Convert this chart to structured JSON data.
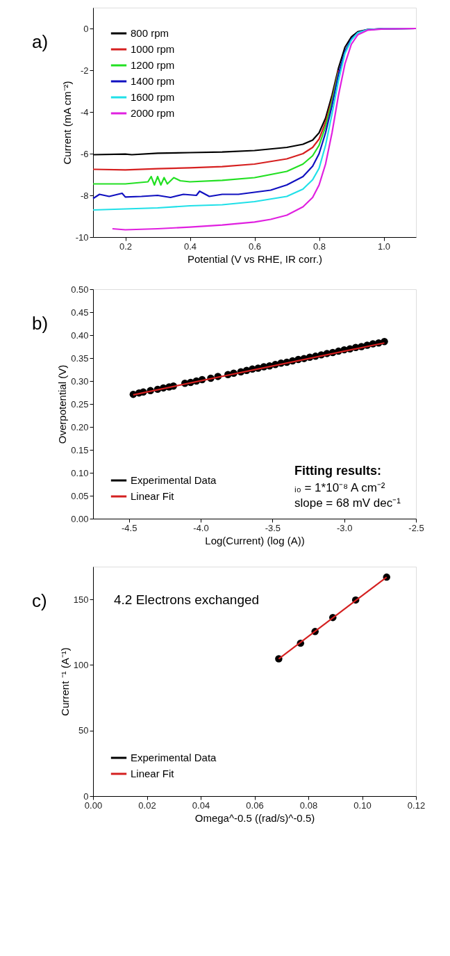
{
  "chart_data": [
    {
      "type": "line",
      "xlabel": "Potential (V vs RHE, IR corr.)",
      "ylabel": "Current (mA cm⁻²)",
      "xlim": [
        0.1,
        1.1
      ],
      "xticks": [
        0.2,
        0.4,
        0.6,
        0.8,
        {
          "value": 1.0,
          "label": "1.0"
        }
      ],
      "ylim": [
        -10,
        1
      ],
      "yticks": [
        -10,
        -8,
        -6,
        -4,
        -2,
        0
      ],
      "grid": false,
      "legend": "top left",
      "annotations": [
        "a)"
      ],
      "series": [
        {
          "name": "800 rpm",
          "color": "#000000",
          "x": [
            0.1,
            0.2,
            0.22,
            0.3,
            0.4,
            0.5,
            0.6,
            0.7,
            0.75,
            0.78,
            0.8,
            0.82,
            0.84,
            0.86,
            0.88,
            0.9,
            0.92,
            0.95,
            1.0,
            1.1
          ],
          "values": [
            -6.05,
            -6.02,
            -6.05,
            -5.98,
            -5.95,
            -5.92,
            -5.85,
            -5.7,
            -5.55,
            -5.35,
            -5.0,
            -4.3,
            -3.2,
            -1.9,
            -0.9,
            -0.4,
            -0.15,
            -0.05,
            -0.01,
            0
          ]
        },
        {
          "name": "1000 rpm",
          "color": "#d62020",
          "x": [
            0.1,
            0.2,
            0.3,
            0.4,
            0.5,
            0.6,
            0.7,
            0.75,
            0.78,
            0.8,
            0.82,
            0.84,
            0.86
          ],
          "values": [
            -6.75,
            -6.78,
            -6.72,
            -6.68,
            -6.62,
            -6.5,
            -6.25,
            -6.0,
            -5.7,
            -5.3,
            -4.5,
            -3.4,
            -2.0
          ]
        },
        {
          "name": "1200 rpm",
          "color": "#22e022",
          "x": [
            0.1,
            0.2,
            0.27,
            0.28,
            0.29,
            0.3,
            0.31,
            0.32,
            0.33,
            0.35,
            0.37,
            0.4,
            0.5,
            0.6,
            0.7,
            0.75,
            0.78,
            0.8,
            0.82,
            0.84,
            0.86
          ],
          "values": [
            -7.45,
            -7.45,
            -7.35,
            -7.1,
            -7.5,
            -7.1,
            -7.5,
            -7.15,
            -7.45,
            -7.15,
            -7.3,
            -7.35,
            -7.28,
            -7.15,
            -6.85,
            -6.5,
            -6.1,
            -5.6,
            -4.7,
            -3.5,
            -2.1
          ]
        },
        {
          "name": "1400 rpm",
          "color": "#1010c0",
          "x": [
            0.1,
            0.12,
            0.15,
            0.19,
            0.2,
            0.25,
            0.3,
            0.34,
            0.38,
            0.42,
            0.43,
            0.46,
            0.5,
            0.55,
            0.6,
            0.65,
            0.7,
            0.75,
            0.78,
            0.8,
            0.82,
            0.84,
            0.86,
            0.88,
            0.9,
            0.92,
            0.95,
            1.0,
            1.1
          ],
          "values": [
            -8.15,
            -7.95,
            -8.05,
            -7.9,
            -8.08,
            -8.05,
            -8.0,
            -8.1,
            -7.95,
            -8.0,
            -7.8,
            -8.05,
            -7.95,
            -7.95,
            -7.85,
            -7.75,
            -7.5,
            -7.1,
            -6.6,
            -6.0,
            -5.0,
            -3.7,
            -2.2,
            -1.1,
            -0.5,
            -0.2,
            -0.05,
            -0.01,
            0
          ]
        },
        {
          "name": "1600 rpm",
          "color": "#20e0e8",
          "x": [
            0.1,
            0.2,
            0.3,
            0.4,
            0.5,
            0.6,
            0.7,
            0.75,
            0.78,
            0.8,
            0.82,
            0.84,
            0.86,
            0.88,
            0.9,
            0.92,
            0.95,
            1.0,
            1.1
          ],
          "values": [
            -8.7,
            -8.65,
            -8.6,
            -8.5,
            -8.45,
            -8.3,
            -8.05,
            -7.7,
            -7.25,
            -6.7,
            -5.6,
            -4.1,
            -2.5,
            -1.2,
            -0.55,
            -0.2,
            -0.06,
            -0.01,
            0
          ]
        },
        {
          "name": "2000 rpm",
          "color": "#e020e0",
          "x": [
            0.16,
            0.2,
            0.3,
            0.4,
            0.5,
            0.6,
            0.65,
            0.7,
            0.75,
            0.78,
            0.8,
            0.82,
            0.84,
            0.86,
            0.88,
            0.9,
            0.92,
            0.95,
            1.0,
            1.1
          ],
          "values": [
            -9.6,
            -9.65,
            -9.6,
            -9.52,
            -9.42,
            -9.28,
            -9.15,
            -8.95,
            -8.55,
            -8.1,
            -7.5,
            -6.5,
            -5.0,
            -3.2,
            -1.7,
            -0.75,
            -0.3,
            -0.08,
            -0.02,
            0
          ]
        }
      ]
    },
    {
      "type": "line",
      "xlabel": "Log(Current) (log (A))",
      "ylabel": "Overpotential (V)",
      "xlim": [
        -4.75,
        -2.5
      ],
      "xticks": [
        -4.5,
        {
          "value": -4.0,
          "label": "-4.0"
        },
        -3.5,
        {
          "value": -3.0,
          "label": "-3.0"
        },
        -2.5
      ],
      "ylim": [
        0,
        0.5
      ],
      "yticks": [
        {
          "value": 0,
          "label": "0.00"
        },
        0.05,
        {
          "value": 0.1,
          "label": "0.10"
        },
        0.15,
        {
          "value": 0.2,
          "label": "0.20"
        },
        0.25,
        {
          "value": 0.3,
          "label": "0.30"
        },
        0.35,
        {
          "value": 0.4,
          "label": "0.40"
        },
        0.45,
        {
          "value": 0.5,
          "label": "0.50"
        }
      ],
      "grid": false,
      "legend": "bottom left",
      "annotations": [
        "b)",
        "Fitting results:",
        "ᵢ₀ = 1*10⁻⁸ A cm⁻²",
        "slope = 68 mV dec⁻¹"
      ],
      "series": [
        {
          "name": "Experimental Data",
          "type": "scatter",
          "color": "#000000",
          "marker": "circle",
          "x": [
            -4.47,
            -4.43,
            -4.4,
            -4.35,
            -4.3,
            -4.26,
            -4.22,
            -4.19,
            -4.11,
            -4.07,
            -4.03,
            -3.99,
            -3.93,
            -3.88,
            -3.81,
            -3.77,
            -3.72,
            -3.68,
            -3.64,
            -3.6,
            -3.56,
            -3.52,
            -3.48,
            -3.44,
            -3.4,
            -3.36,
            -3.32,
            -3.28,
            -3.24,
            -3.2,
            -3.16,
            -3.12,
            -3.08,
            -3.04,
            -3.0,
            -2.96,
            -2.92,
            -2.88,
            -2.84,
            -2.8,
            -2.76,
            -2.72
          ],
          "values": [
            0.271,
            0.274,
            0.276,
            0.279,
            0.282,
            0.285,
            0.287,
            0.289,
            0.295,
            0.297,
            0.3,
            0.303,
            0.306,
            0.31,
            0.314,
            0.317,
            0.32,
            0.323,
            0.326,
            0.328,
            0.331,
            0.333,
            0.336,
            0.339,
            0.341,
            0.344,
            0.347,
            0.349,
            0.352,
            0.354,
            0.357,
            0.36,
            0.362,
            0.365,
            0.368,
            0.37,
            0.373,
            0.375,
            0.378,
            0.381,
            0.383,
            0.386
          ]
        },
        {
          "name": "Linear Fit",
          "color": "#d42020",
          "x": [
            -4.47,
            -2.72
          ],
          "values": [
            0.27,
            0.383
          ]
        }
      ]
    },
    {
      "type": "line",
      "xlabel": "Omega^-0.5 ((rad/s)^-0.5)",
      "ylabel": "Current ⁻¹ (A⁻¹)",
      "xlim": [
        0,
        0.12
      ],
      "xticks": [
        {
          "value": 0,
          "label": "0.00"
        },
        0.02,
        0.04,
        0.06,
        0.08,
        {
          "value": 0.1,
          "label": "0.10"
        },
        0.12
      ],
      "ylim": [
        0,
        175
      ],
      "yticks": [
        0,
        50,
        100,
        150
      ],
      "grid": false,
      "legend": "bottom left",
      "annotations": [
        "c)",
        "4.2 Electrons exchanged"
      ],
      "series": [
        {
          "name": "Experimental Data",
          "type": "scatter",
          "color": "#000000",
          "marker": "circle",
          "x": [
            0.069,
            0.0771,
            0.0825,
            0.0891,
            0.0976,
            0.1091
          ],
          "values": [
            104.7,
            116.6,
            125.5,
            136.2,
            149.6,
            167
          ]
        },
        {
          "name": "Linear Fit",
          "color": "#d42020",
          "x": [
            0.069,
            0.1091
          ],
          "values": [
            104.7,
            167
          ]
        }
      ]
    }
  ]
}
